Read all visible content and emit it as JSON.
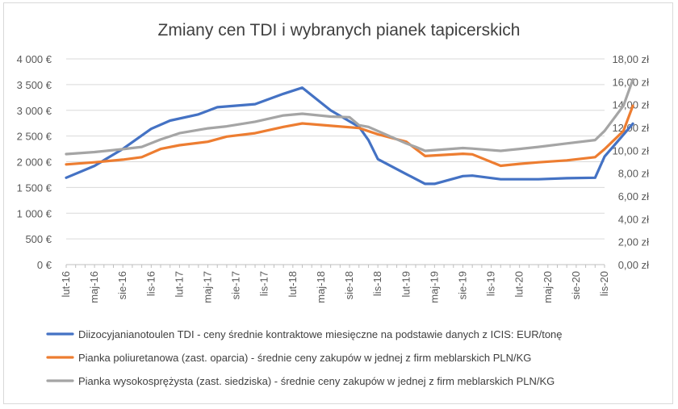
{
  "chart_data": {
    "type": "line",
    "title": "Zmiany cen TDI i wybranych pianek tapicerskich",
    "x": [
      "lut-16",
      "",
      "",
      "maj-16",
      "",
      "",
      "sie-16",
      "",
      "",
      "lis-16",
      "",
      "",
      "lut-17",
      "",
      "",
      "maj-17",
      "",
      "",
      "sie-17",
      "",
      "",
      "lis-17",
      "",
      "",
      "lut-18",
      "",
      "",
      "maj-18",
      "",
      "",
      "sie-18",
      "",
      "",
      "lis-18",
      "",
      "",
      "lut-19",
      "",
      "",
      "maj-19",
      "",
      "",
      "sie-19",
      "",
      "",
      "lis-19",
      "",
      "",
      "lut-20",
      "",
      "",
      "maj-20",
      "",
      "",
      "sie-20",
      "",
      "",
      "lis-20"
    ],
    "x_tick_labels": [
      "lut-16",
      "maj-16",
      "sie-16",
      "lis-16",
      "lut-17",
      "maj-17",
      "sie-17",
      "lis-17",
      "lut-18",
      "maj-18",
      "sie-18",
      "lis-18",
      "lut-19",
      "maj-19",
      "sie-19",
      "lis-19",
      "lut-20",
      "maj-20",
      "sie-20",
      "lis-20"
    ],
    "y_left": {
      "min": 0,
      "max": 4000,
      "step": 500,
      "tick_labels": [
        "0 €",
        "500 €",
        "1 000 €",
        "1 500 €",
        "2 000 €",
        "2 500 €",
        "3 000 €",
        "3 500 €",
        "4 000 €"
      ]
    },
    "y_right": {
      "min": 0,
      "max": 18,
      "step": 2,
      "tick_labels": [
        "0,00 zł",
        "2,00 zł",
        "4,00 zł",
        "6,00 zł",
        "8,00 zł",
        "10,00 zł",
        "12,00 zł",
        "14,00 zł",
        "16,00 zł",
        "18,00 zł"
      ]
    },
    "grid": true,
    "legend_position": "bottom",
    "series": [
      {
        "name": "Diizocyjanianotoulen TDI - ceny średnie kontraktowe miesięczne na podstawie danych z ICIS: EUR/tonę",
        "axis": "left",
        "color": "#4472c4",
        "points": [
          [
            0,
            1690
          ],
          [
            3,
            1920
          ],
          [
            6,
            2250
          ],
          [
            9,
            2640
          ],
          [
            11,
            2800
          ],
          [
            14,
            2920
          ],
          [
            16,
            3060
          ],
          [
            18,
            3090
          ],
          [
            20,
            3120
          ],
          [
            23,
            3320
          ],
          [
            25,
            3440
          ],
          [
            28,
            3000
          ],
          [
            31,
            2680
          ],
          [
            32,
            2420
          ],
          [
            33,
            2050
          ],
          [
            36,
            1760
          ],
          [
            38,
            1570
          ],
          [
            39,
            1570
          ],
          [
            42,
            1720
          ],
          [
            43,
            1730
          ],
          [
            46,
            1660
          ],
          [
            48,
            1660
          ],
          [
            50,
            1660
          ],
          [
            53,
            1680
          ],
          [
            56,
            1690
          ],
          [
            57,
            2100
          ],
          [
            60,
            2740
          ]
        ]
      },
      {
        "name": "Pianka poliuretanowa (zast. oparcia) - średnie ceny zakupów w jednej z firm meblarskich PLN/KG",
        "axis": "right",
        "color": "#ed7d31",
        "points": [
          [
            0,
            8.77
          ],
          [
            3,
            8.95
          ],
          [
            6,
            9.18
          ],
          [
            8,
            9.4
          ],
          [
            10,
            10.12
          ],
          [
            12,
            10.45
          ],
          [
            15,
            10.75
          ],
          [
            17,
            11.2
          ],
          [
            20,
            11.5
          ],
          [
            23,
            12.05
          ],
          [
            25,
            12.35
          ],
          [
            28,
            12.15
          ],
          [
            31,
            11.95
          ],
          [
            33,
            11.4
          ],
          [
            36,
            10.75
          ],
          [
            38,
            9.5
          ],
          [
            42,
            9.7
          ],
          [
            43,
            9.65
          ],
          [
            46,
            8.65
          ],
          [
            48,
            8.82
          ],
          [
            50,
            8.95
          ],
          [
            53,
            9.12
          ],
          [
            56,
            9.4
          ],
          [
            57,
            10.1
          ],
          [
            59,
            11.7
          ],
          [
            60,
            13.9
          ]
        ]
      },
      {
        "name": "Pianka wysokosprężysta (zast. siedziska) - średnie ceny zakupów w jednej z firm meblarskich PLN/KG",
        "axis": "right",
        "color": "#a5a5a5",
        "points": [
          [
            0,
            9.67
          ],
          [
            3,
            9.85
          ],
          [
            6,
            10.1
          ],
          [
            8,
            10.3
          ],
          [
            10,
            10.95
          ],
          [
            12,
            11.5
          ],
          [
            15,
            11.92
          ],
          [
            17,
            12.1
          ],
          [
            20,
            12.5
          ],
          [
            23,
            13.05
          ],
          [
            25,
            13.2
          ],
          [
            28,
            12.95
          ],
          [
            30,
            12.9
          ],
          [
            31,
            12.2
          ],
          [
            32,
            12.05
          ],
          [
            36,
            10.6
          ],
          [
            37,
            10.3
          ],
          [
            38,
            9.95
          ],
          [
            42,
            10.2
          ],
          [
            43,
            10.15
          ],
          [
            46,
            9.95
          ],
          [
            48,
            10.12
          ],
          [
            50,
            10.3
          ],
          [
            53,
            10.6
          ],
          [
            56,
            10.9
          ],
          [
            57,
            11.7
          ],
          [
            59,
            13.9
          ],
          [
            60,
            16.2
          ]
        ]
      }
    ]
  }
}
